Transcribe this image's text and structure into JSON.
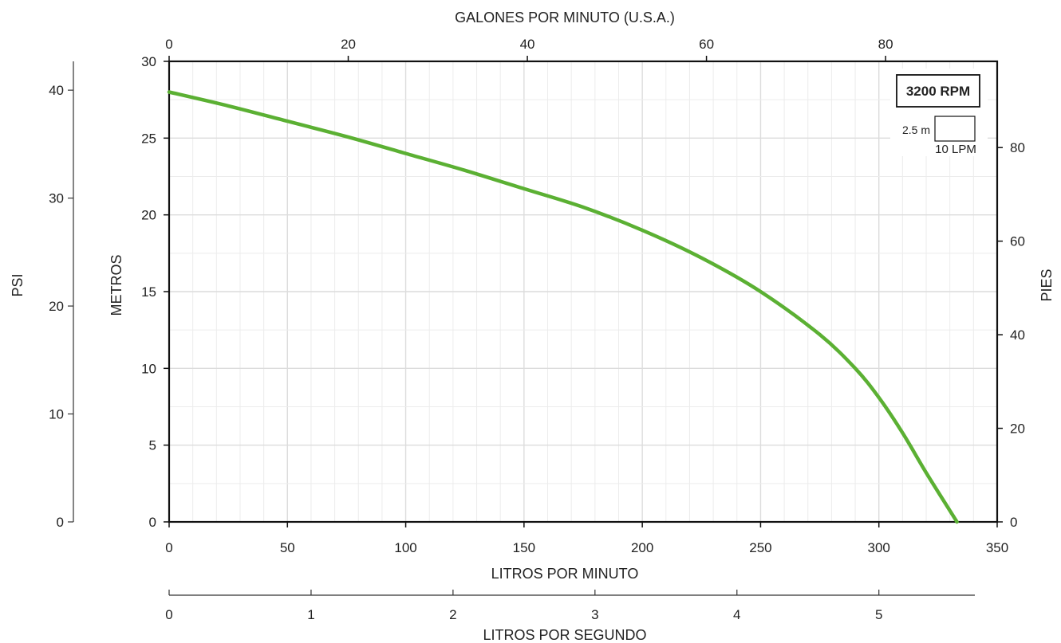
{
  "chart_data": {
    "type": "line",
    "title": "",
    "legend": {
      "speed_label": "3200 RPM",
      "scale_head_label": "2.5 m",
      "scale_flow_label": "10 LPM"
    },
    "axes": {
      "bottom": {
        "label": "LITROS POR MINUTO",
        "unit": "LPM",
        "range": [
          0,
          350
        ],
        "ticks": [
          "0",
          "50",
          "100",
          "150",
          "200",
          "250",
          "300",
          "350"
        ]
      },
      "top": {
        "label": "GALONES POR MINUTO (U.S.A.)",
        "ticks": [
          "0",
          "20",
          "40",
          "60",
          "80"
        ]
      },
      "lps": {
        "label": "LITROS POR SEGUNDO",
        "ticks": [
          "0",
          "1",
          "2",
          "3",
          "4",
          "5"
        ]
      },
      "left": {
        "label": "METROS",
        "range": [
          0,
          30
        ],
        "ticks": [
          "0",
          "5",
          "10",
          "15",
          "20",
          "25",
          "30"
        ]
      },
      "psi": {
        "label": "PSI",
        "ticks": [
          "0",
          "10",
          "20",
          "30",
          "40"
        ]
      },
      "right": {
        "label": "PIES",
        "ticks": [
          "0",
          "20",
          "40",
          "60",
          "80"
        ]
      }
    },
    "series": [
      {
        "color": "#5bb033",
        "x": [
          0,
          25,
          50,
          75,
          100,
          125,
          150,
          175,
          200,
          225,
          250,
          275,
          290,
          300,
          310,
          320,
          333
        ],
        "y": [
          28.0,
          27.1,
          26.1,
          25.1,
          24.0,
          22.9,
          21.7,
          20.5,
          19.0,
          17.2,
          15.0,
          12.2,
          10.0,
          8.1,
          5.8,
          3.2,
          0
        ]
      }
    ]
  }
}
